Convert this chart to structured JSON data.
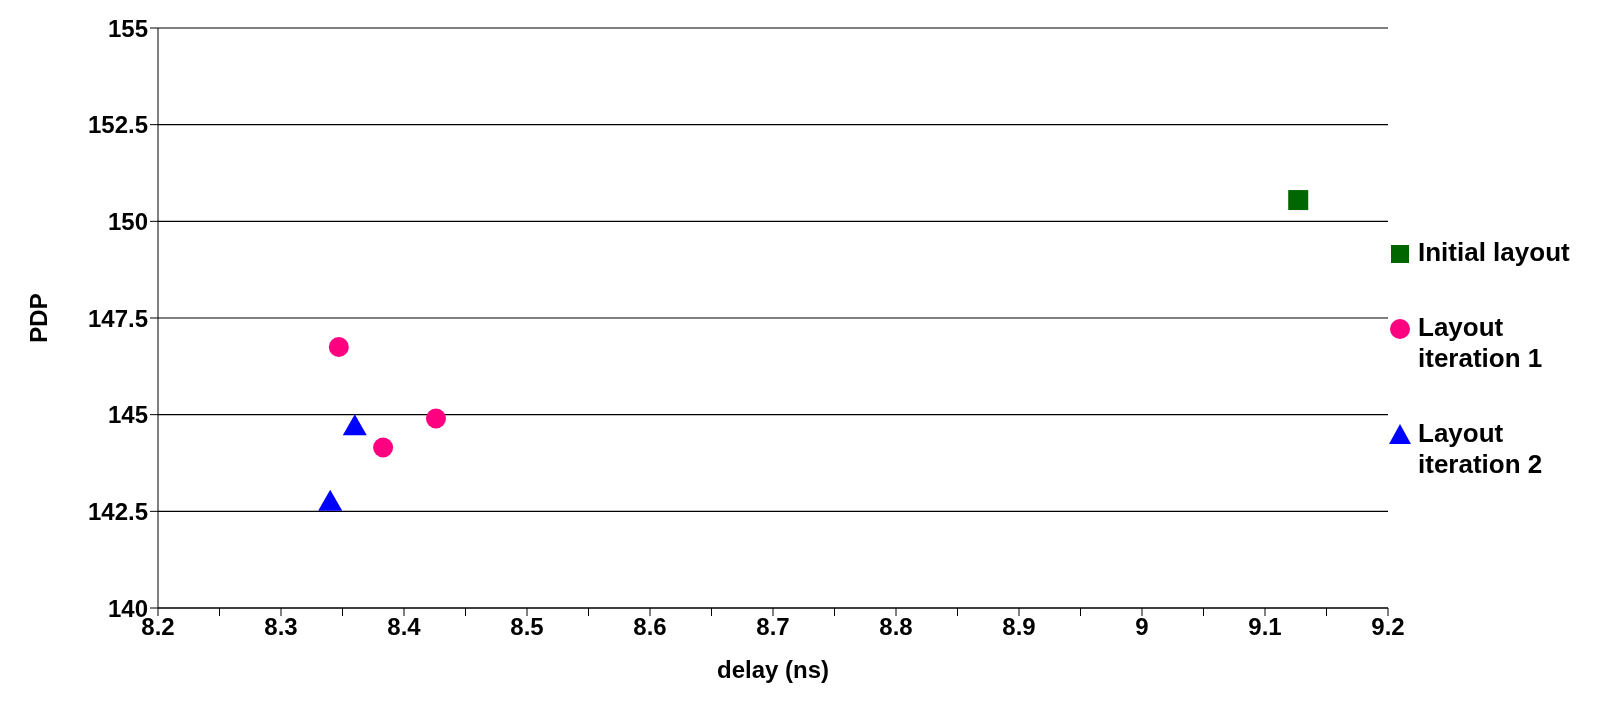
{
  "chart_data": {
    "type": "scatter",
    "xlabel": "delay (ns)",
    "ylabel": "PDP",
    "xlim": [
      8.2,
      9.2
    ],
    "xticks": [
      8.2,
      {
        "value": 8.25,
        "label": null
      },
      8.3,
      {
        "value": 8.35,
        "label": null
      },
      8.4,
      {
        "value": 8.45,
        "label": null
      },
      8.5,
      {
        "value": 8.55,
        "label": null
      },
      8.6,
      {
        "value": 8.65,
        "label": null
      },
      8.7,
      {
        "value": 8.75,
        "label": null
      },
      8.8,
      {
        "value": 8.85,
        "label": null
      },
      8.9,
      {
        "value": 8.95,
        "label": null
      },
      9,
      {
        "value": 9.05,
        "label": null
      },
      9.1,
      {
        "value": 9.15,
        "label": null
      },
      9.2
    ],
    "ylim": [
      140,
      155
    ],
    "yticks": [
      140,
      142.5,
      145,
      147.5,
      150,
      152.5,
      155
    ],
    "grid": "y",
    "legend": "right",
    "series": [
      {
        "name": "Initial layout",
        "color": "#006600",
        "marker": "square",
        "x": [
          9.127
        ],
        "values": [
          150.55
        ]
      },
      {
        "name": "Layout iteration 1",
        "color": "#ff0080",
        "marker": "circle",
        "x": [
          8.347,
          8.383,
          8.426
        ],
        "values": [
          146.75,
          144.15,
          144.9
        ]
      },
      {
        "name": "Layout iteration 2",
        "color": "#0000ff",
        "marker": "triangle",
        "x": [
          8.36,
          8.34
        ],
        "values": [
          144.7,
          142.75
        ]
      }
    ]
  }
}
